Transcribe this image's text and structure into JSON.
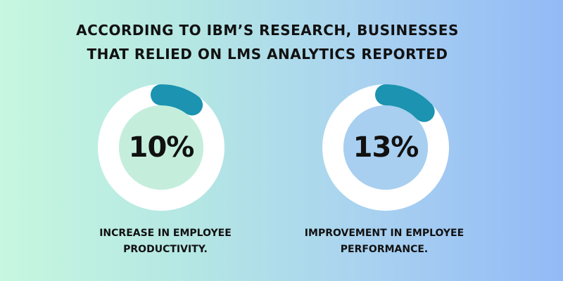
{
  "headline": {
    "line1": "ACCORDING TO IBM’S RESEARCH, BUSINESSES",
    "line2": "THAT RELIED ON LMS ANALYTICS REPORTED"
  },
  "stats": [
    {
      "value": "10%",
      "percent": 10,
      "caption_line1": "INCREASE IN EMPLOYEE",
      "caption_line2": "PRODUCTIVITY."
    },
    {
      "value": "13%",
      "percent": 13,
      "caption_line1": "IMPROVEMENT IN EMPLOYEE",
      "caption_line2": "PERFORMANCE."
    }
  ],
  "colors": {
    "ring": "#ffffff",
    "arc": "#1b93b1",
    "center_left": "#c4eedb",
    "center_right": "#a8cff0"
  }
}
